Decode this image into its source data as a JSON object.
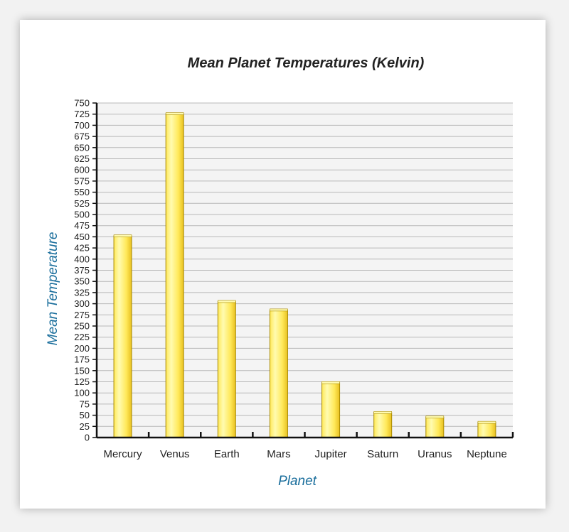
{
  "chart_data": {
    "type": "bar",
    "title": "Mean Planet Temperatures (Kelvin)",
    "xlabel": "Planet",
    "ylabel": "Mean Temperature",
    "categories": [
      "Mercury",
      "Venus",
      "Earth",
      "Mars",
      "Jupiter",
      "Saturn",
      "Uranus",
      "Neptune"
    ],
    "values": [
      452,
      726,
      305,
      286,
      123,
      56,
      46,
      34
    ],
    "ylim": [
      0,
      750
    ],
    "ytick_step": 25,
    "grid": true,
    "legend": "none",
    "colors": {
      "bar_fill_light": "#fffbb0",
      "bar_fill_mid": "#ffe95a",
      "bar_fill_dark": "#e8c020",
      "bar_stroke": "#a88a00",
      "grid": "#b8b8b8",
      "plot_bg": "#f4f4f4",
      "axis": "#111111",
      "axis_title": "#1a6e9c"
    }
  }
}
